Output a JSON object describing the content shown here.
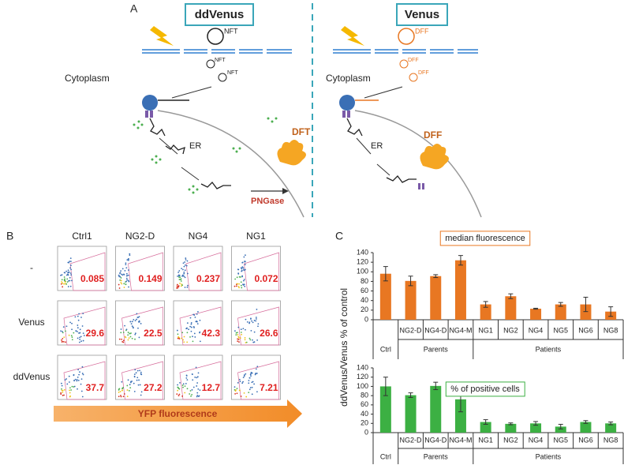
{
  "panel_a": {
    "label": "A",
    "left": {
      "title": "ddVenus",
      "tag1": "NFT",
      "tag2": "NFT",
      "tag3": "NFT",
      "compartment": "Cytoplasm",
      "organelle": "ER",
      "enzyme": "PNGase",
      "product": "DFT"
    },
    "right": {
      "title": "Venus",
      "tag1": "DFF",
      "tag2": "DFF",
      "tag3": "DFF",
      "compartment": "Cytoplasm",
      "organelle": "ER",
      "product": "DFF"
    }
  },
  "panel_b": {
    "label": "B",
    "columns": [
      "Ctrl1",
      "NG2-D",
      "NG4",
      "NG1"
    ],
    "rows": [
      "-",
      "Venus",
      "ddVenus"
    ],
    "values": [
      [
        0.085,
        0.149,
        0.237,
        0.072
      ],
      [
        29.6,
        22.5,
        42.3,
        26.6
      ],
      [
        37.7,
        27.2,
        12.7,
        7.21
      ]
    ],
    "axis_label": "YFP fluorescence"
  },
  "panel_c": {
    "label": "C",
    "ylabel": "ddVenus/Venus % of control"
  },
  "chart_data": [
    {
      "type": "bar",
      "title": "median fluorescence",
      "categories": [
        "Ctrl",
        "NG2-D",
        "NG4-D",
        "NG4-M",
        "NG1",
        "NG2",
        "NG4",
        "NG5",
        "NG6",
        "NG8"
      ],
      "category_groups": [
        null,
        "Parents",
        "Parents",
        "Parents",
        "Patients",
        "Patients",
        "Patients",
        "Patients",
        "Patients",
        "Patients"
      ],
      "values": [
        96,
        81,
        91,
        124,
        32,
        49,
        23,
        32,
        32,
        17
      ],
      "errors": [
        15,
        10,
        3,
        10,
        6,
        5,
        1,
        4,
        15,
        10
      ],
      "color": "#e87722",
      "ylim": [
        0,
        140
      ],
      "yticks": [
        0,
        20,
        40,
        60,
        80,
        100,
        120,
        140
      ]
    },
    {
      "type": "bar",
      "title": "% of positive cells",
      "categories": [
        "Ctrl",
        "NG2-D",
        "NG4-D",
        "NG4-M",
        "NG1",
        "NG2",
        "NG4",
        "NG5",
        "NG6",
        "NG8"
      ],
      "category_groups": [
        null,
        "Parents",
        "Parents",
        "Parents",
        "Patients",
        "Patients",
        "Patients",
        "Patients",
        "Patients",
        "Patients"
      ],
      "values": [
        100,
        81,
        101,
        72,
        23,
        19,
        20,
        13,
        23,
        20
      ],
      "errors": [
        20,
        5,
        8,
        27,
        5,
        2,
        4,
        5,
        3,
        3
      ],
      "color": "#3cb043",
      "ylim": [
        0,
        140
      ],
      "yticks": [
        0,
        20,
        40,
        60,
        80,
        100,
        120,
        140
      ]
    }
  ]
}
